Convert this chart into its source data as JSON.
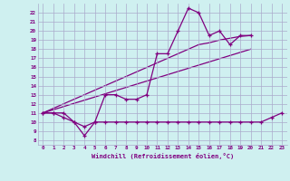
{
  "xlabel": "Windchill (Refroidissement éolien,°C)",
  "bg_color": "#cff0f0",
  "line_color": "#800080",
  "grid_color": "#aaaacc",
  "x_main": [
    0,
    1,
    2,
    3,
    4,
    5,
    6,
    7,
    8,
    9,
    10,
    11,
    12,
    13,
    14,
    15,
    16,
    17,
    18,
    19,
    20,
    21,
    22,
    23
  ],
  "y_series1": [
    11,
    11,
    11,
    10,
    8.5,
    10,
    13,
    13,
    12.5,
    12.5,
    13,
    17.5,
    17.5,
    20,
    22.5,
    22,
    19.5,
    20,
    18.5,
    19.5,
    19.5,
    null,
    null,
    null
  ],
  "y_series2": [
    11,
    11,
    10.5,
    10,
    9.5,
    10,
    10,
    10,
    10,
    10,
    10,
    10,
    10,
    10,
    10,
    10,
    10,
    10,
    10,
    10,
    10,
    10,
    10.5,
    11
  ],
  "y_linear1": [
    11,
    11.5,
    12,
    12.5,
    13,
    13.5,
    14,
    14.5,
    15,
    15.5,
    16,
    16.5,
    17,
    17.5,
    18,
    18.5,
    18.7,
    19.0,
    19.2,
    19.4,
    19.5,
    null,
    null,
    null
  ],
  "y_linear2": [
    11,
    11.35,
    11.7,
    12.05,
    12.4,
    12.75,
    13.1,
    13.45,
    13.8,
    14.15,
    14.5,
    14.85,
    15.2,
    15.55,
    15.9,
    16.25,
    16.6,
    16.95,
    17.3,
    17.65,
    18.0,
    null,
    null,
    null
  ],
  "ylim": [
    8,
    22.5
  ],
  "xlim": [
    0,
    23
  ],
  "yticks": [
    8,
    9,
    10,
    11,
    12,
    13,
    14,
    15,
    16,
    17,
    18,
    19,
    20,
    21,
    22
  ],
  "xticks": [
    0,
    1,
    2,
    3,
    4,
    5,
    6,
    7,
    8,
    9,
    10,
    11,
    12,
    13,
    14,
    15,
    16,
    17,
    18,
    19,
    20,
    21,
    22,
    23
  ]
}
